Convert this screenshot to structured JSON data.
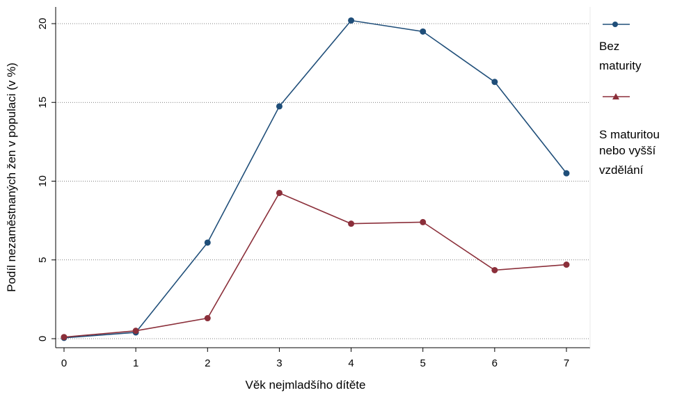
{
  "chart_data": {
    "type": "line",
    "title": "",
    "xlabel": "Věk nejmladšího dítěte",
    "ylabel": "Podíl nezaměstnaných žen v populaci (v %)",
    "xlim": [
      0,
      7
    ],
    "ylim": [
      0,
      20
    ],
    "x_ticks": [
      "0",
      "1",
      "2",
      "3",
      "4",
      "5",
      "6",
      "7"
    ],
    "y_ticks": [
      "0",
      "5",
      "10",
      "15",
      "20"
    ],
    "grid": "horizontal dotted",
    "legend_position": "right",
    "x": [
      0,
      1,
      2,
      3,
      4,
      5,
      6,
      7
    ],
    "series": [
      {
        "name": "Bez maturity",
        "name_lines": [
          "Bez",
          "maturity"
        ],
        "color": "#1f4e79",
        "legend_marker": "circle",
        "values": [
          0.05,
          0.4,
          6.1,
          14.75,
          20.2,
          19.5,
          16.3,
          10.5
        ]
      },
      {
        "name": "S maturitou nebo vyšší vzdělání",
        "name_lines": [
          "S maturitou",
          "nebo vyšší",
          "vzdělání"
        ],
        "color": "#8b2f3a",
        "legend_marker": "triangle",
        "values": [
          0.1,
          0.5,
          1.3,
          9.25,
          7.3,
          7.4,
          4.35,
          4.7
        ]
      }
    ]
  }
}
